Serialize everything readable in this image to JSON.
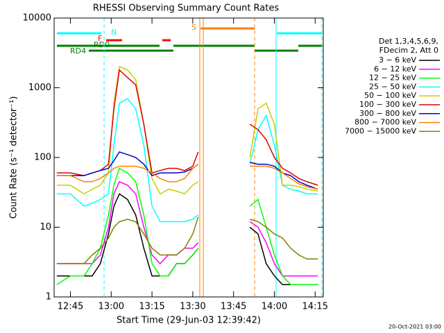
{
  "chart_data": {
    "type": "line",
    "title": "RHESSI Observing Summary Count Rates",
    "xlabel": "Start Time (29-Jun-03 12:39:42)",
    "ylabel": "Count Rate (s⁻¹ detector⁻¹)",
    "legend_header": [
      "Det 1,3,4,5,6,9,",
      "FDecim 2, Att 0"
    ],
    "footer": "20-Oct-2021 03:00",
    "flag_labels": [
      "N",
      "F",
      "RD0",
      "RD4",
      "S"
    ],
    "log_y": true,
    "xlim": [
      "12:39",
      "14:18"
    ],
    "xticks": [
      "12:45",
      "13:00",
      "13:15",
      "13:30",
      "13:45",
      "14:00",
      "14:15"
    ],
    "ylim": [
      1,
      10000
    ],
    "yticks": [
      1,
      10,
      100,
      1000,
      10000
    ],
    "x": [
      "12:40",
      "12:45",
      "12:50",
      "12:53",
      "12:56",
      "12:59",
      "13:01",
      "13:03",
      "13:06",
      "13:09",
      "13:12",
      "13:15",
      "13:18",
      "13:21",
      "13:24",
      "13:27",
      "13:30",
      "13:32",
      "13:40",
      "13:51",
      "13:54",
      "13:57",
      "14:00",
      "14:03",
      "14:06",
      "14:09",
      "14:12",
      "14:16"
    ],
    "series": [
      {
        "name": "3 − 6 keV",
        "color": "#000000",
        "values": [
          2,
          2,
          2,
          2,
          3,
          8,
          20,
          30,
          25,
          15,
          5,
          2,
          2,
          2,
          3,
          3,
          4,
          5,
          null,
          10,
          8,
          3,
          2,
          1.5,
          1.5,
          1.5,
          1.5,
          1.5
        ]
      },
      {
        "name": "6 − 12 keV",
        "color": "#ff00ff",
        "values": [
          3,
          3,
          3,
          3,
          4,
          10,
          30,
          45,
          40,
          30,
          10,
          4,
          3,
          4,
          4,
          5,
          5,
          6,
          null,
          12,
          10,
          6,
          3,
          2,
          2,
          2,
          2,
          2
        ]
      },
      {
        "name": "12 − 25 keV",
        "color": "#00ff00",
        "values": [
          1.5,
          2,
          2,
          3,
          5,
          15,
          40,
          70,
          60,
          45,
          15,
          3,
          2,
          2,
          3,
          3,
          4,
          5,
          null,
          20,
          25,
          10,
          4,
          2,
          1.5,
          1.5,
          1.5,
          1.5
        ]
      },
      {
        "name": "25 − 50 keV",
        "color": "#00ffff",
        "values": [
          30,
          30,
          20,
          22,
          25,
          30,
          150,
          600,
          700,
          500,
          150,
          20,
          12,
          12,
          12,
          12,
          13,
          15,
          null,
          80,
          250,
          400,
          150,
          40,
          35,
          33,
          30,
          30
        ]
      },
      {
        "name": "50 − 100 keV",
        "color": "#cccc00",
        "values": [
          40,
          40,
          30,
          35,
          40,
          60,
          600,
          2000,
          1800,
          1300,
          300,
          50,
          30,
          35,
          33,
          30,
          40,
          45,
          null,
          100,
          500,
          600,
          300,
          40,
          40,
          38,
          35,
          33
        ]
      },
      {
        "name": "100 − 300 keV",
        "color": "#dd0000",
        "values": [
          60,
          60,
          55,
          60,
          65,
          80,
          500,
          1800,
          1400,
          1100,
          300,
          60,
          65,
          70,
          70,
          65,
          75,
          120,
          null,
          300,
          250,
          180,
          100,
          70,
          60,
          50,
          45,
          40
        ]
      },
      {
        "name": "300 − 800 keV",
        "color": "#0000cc",
        "values": [
          55,
          55,
          55,
          60,
          65,
          70,
          90,
          120,
          110,
          100,
          80,
          55,
          60,
          60,
          60,
          62,
          70,
          80,
          null,
          85,
          80,
          80,
          75,
          60,
          55,
          45,
          40,
          35
        ]
      },
      {
        "name": "800 − 7000 keV",
        "color": "#ff7f00",
        "values": [
          55,
          55,
          45,
          45,
          50,
          60,
          70,
          75,
          75,
          75,
          70,
          60,
          50,
          45,
          45,
          50,
          70,
          80,
          null,
          75,
          75,
          75,
          70,
          60,
          50,
          42,
          38,
          35
        ]
      },
      {
        "name": "7000 − 15000 keV",
        "color": "#808000",
        "values": [
          3,
          3,
          3,
          4,
          5,
          7,
          10,
          12,
          13,
          12,
          8,
          5,
          4,
          4,
          4,
          5,
          8,
          14,
          null,
          13,
          12,
          10,
          8,
          7,
          5,
          4,
          3.5,
          3.5
        ]
      }
    ]
  }
}
